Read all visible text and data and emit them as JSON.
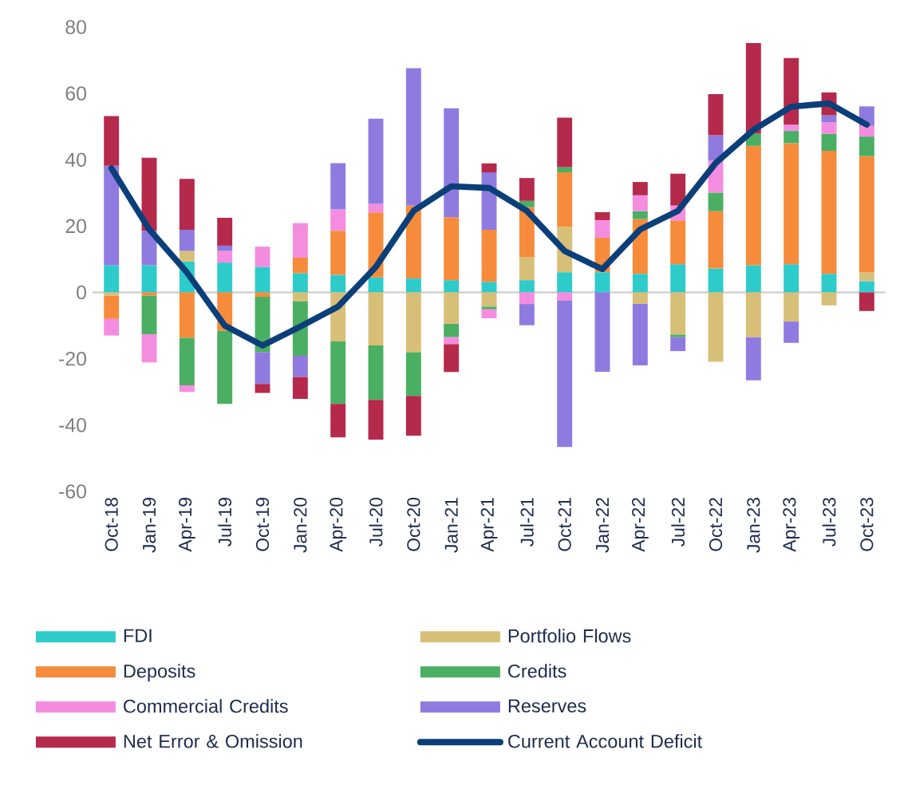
{
  "chart_data": {
    "type": "bar",
    "stacked": true,
    "legend": "bottom",
    "ref_lines": [
      {
        "axis": "y",
        "value": 0,
        "color": "#c8c8c8"
      }
    ],
    "categories": [
      "Oct-18",
      "Jan-19",
      "Apr-19",
      "Jul-19",
      "Oct-19",
      "Jan-20",
      "Apr-20",
      "Jul-20",
      "Oct-20",
      "Jan-21",
      "Apr-21",
      "Jul-21",
      "Oct-21",
      "Jan-22",
      "Apr-22",
      "Jul-22",
      "Oct-22",
      "Jan-23",
      "Apr-23",
      "Jul-23",
      "Oct-23"
    ],
    "ylim": [
      -60,
      80
    ],
    "yticks": [
      -60,
      -40,
      -20,
      0,
      20,
      40,
      60,
      80
    ],
    "series": [
      {
        "name": "FDI",
        "color": "#2ecbcb",
        "values": [
          8.2,
          8.2,
          9.3,
          9,
          7.7,
          5.8,
          5.3,
          4.5,
          4.2,
          3.7,
          3.2,
          3.7,
          6.1,
          6.1,
          5.6,
          8.5,
          7.2,
          8.2,
          8.5,
          5.6,
          3.4
        ]
      },
      {
        "name": "Portfolio Flows",
        "color": "#d8bf78",
        "values": [
          -1,
          0,
          3.2,
          0,
          0,
          -2.7,
          -14.8,
          -16,
          -18,
          -9.5,
          -4.3,
          6.9,
          13.7,
          0,
          -3.5,
          -12.7,
          -20.9,
          -13.5,
          -8.8,
          -3.9,
          2.7
        ]
      },
      {
        "name": "Deposits",
        "color": "#f68b3b",
        "values": [
          -7,
          -1,
          -13.7,
          -11.6,
          -1.3,
          4.7,
          13.3,
          19.6,
          22,
          19,
          15.7,
          15.1,
          16.4,
          10.4,
          16.5,
          13.2,
          17.3,
          36,
          36.5,
          37.1,
          35
        ]
      },
      {
        "name": "Credits",
        "color": "#4aaf62",
        "values": [
          0,
          -11.6,
          -14.3,
          -22,
          -16.7,
          -16.4,
          -18.8,
          -16.4,
          -13.2,
          -4,
          -0.8,
          1.9,
          1.6,
          0,
          2.4,
          -0.8,
          5.6,
          3.7,
          3.7,
          5.1,
          5.9
        ]
      },
      {
        "name": "Commercial Credits",
        "color": "#f48ce0",
        "values": [
          -5,
          -8.5,
          -2,
          3.5,
          6.1,
          10.4,
          6.4,
          2.6,
          0,
          -2.1,
          -2.7,
          -3.5,
          -2.4,
          5.3,
          4.8,
          4.5,
          9.6,
          0,
          1.9,
          3.5,
          3.2
        ]
      },
      {
        "name": "Reserves",
        "color": "#8f7be0",
        "values": [
          30,
          10.4,
          6.4,
          1.6,
          -9.6,
          -6.4,
          14,
          25.7,
          41.4,
          32.8,
          17.3,
          -6.4,
          -44.2,
          -23.9,
          -18.5,
          -4.2,
          7.7,
          -13,
          -6.4,
          2.1,
          5.9
        ]
      },
      {
        "name": "Net Error & Omission",
        "color": "#b5294a",
        "values": [
          15,
          22,
          15.3,
          8.4,
          -2.7,
          -6.6,
          -10.1,
          -12,
          -12,
          -8.4,
          2.7,
          6.9,
          14.9,
          2.4,
          4,
          9.6,
          12.4,
          27.3,
          20.1,
          6.9,
          -5.6
        ]
      },
      {
        "name": "Current Account Deficit",
        "color": "#0b3f7a",
        "type": "line",
        "values": [
          37.4,
          19,
          6,
          -10,
          -16,
          -10.3,
          -4.3,
          7.7,
          24.6,
          32,
          31.5,
          24.6,
          12.5,
          7,
          19,
          24.6,
          39,
          49,
          56,
          57,
          50.6
        ]
      }
    ]
  }
}
